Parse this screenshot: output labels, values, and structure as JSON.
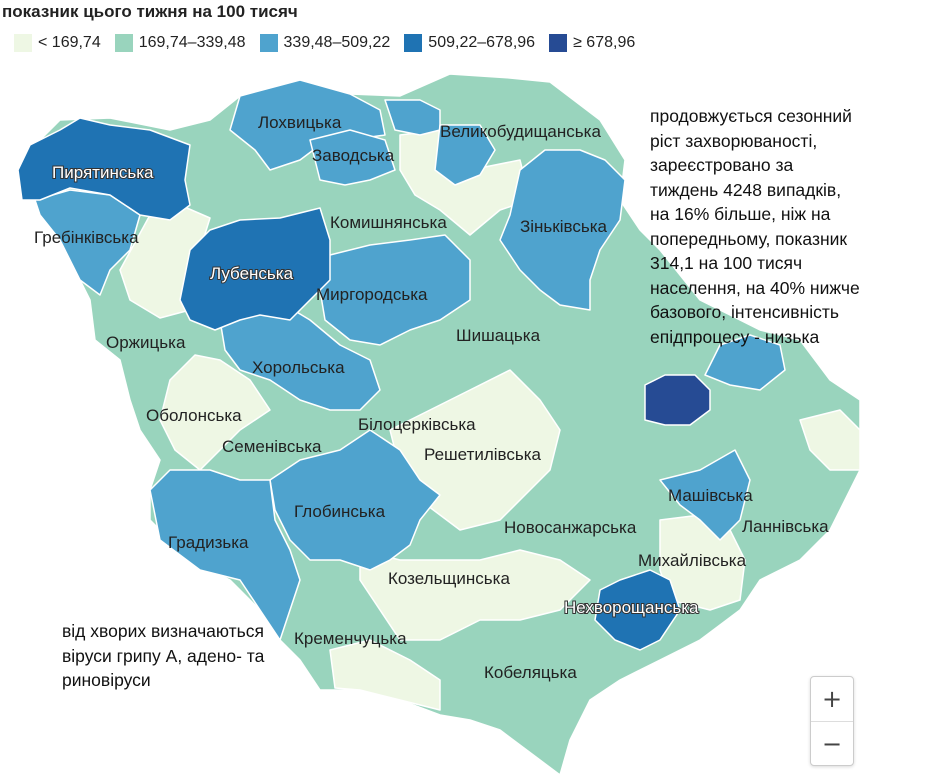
{
  "title": "показник цього тижня на 100 тисяч",
  "legend": [
    {
      "label": "< 169,74",
      "color": "#eef7e4"
    },
    {
      "label": "169,74–339,48",
      "color": "#99d4bd"
    },
    {
      "label": "339,48–509,22",
      "color": "#4fa3ce"
    },
    {
      "label": "509,22–678,96",
      "color": "#1f73b3"
    },
    {
      "label": "≥ 678,96",
      "color": "#264b94"
    }
  ],
  "districts": {
    "pyriatynska": "Пирятинська",
    "lokhvytska": "Лохвицька",
    "zavodska": "Заводська",
    "velykobudyshchanska": "Великобудищанська",
    "hrebinkivska": "Гребінківська",
    "komyshnianska": "Комишнянська",
    "zinkivska": "Зіньківська",
    "lubenska": "Лубенська",
    "myrhorodska": "Миргородська",
    "orzhytska": "Оржицька",
    "shyshatska": "Шишацька",
    "khorolska": "Хорольська",
    "obolonska": "Оболонська",
    "bilotserkivska": "Білоцерківська",
    "semenivska": "Семенівська",
    "reshetylivska": "Решетилівська",
    "mashivska": "Машівська",
    "hlobynska": "Глобинська",
    "novosanzharska": "Новосанжарська",
    "lannivska": "Ланнівська",
    "hradyzka": "Градизька",
    "mykhailivska": "Михайлівська",
    "kozelshchynska": "Козельщинська",
    "nekhvoroshchanska": "Нехворощанська",
    "kremenchutska": "Кременчуцька",
    "kobeliatska": "Кобеляцька"
  },
  "notes": {
    "right": "продовжується сезонний ріст захворюваності, зареєстровано за тиждень 4248 випадків, на 16% більше, ніж на попередньому, показник 314,1 на 100 тисяч населення, на 40% нижче базового, інтенсивність епідпроцесу - низька",
    "left": "від хворих визначаються віруси грипу А, адено- та риновіруси"
  },
  "zoom": {
    "in": "+",
    "out": "−"
  }
}
